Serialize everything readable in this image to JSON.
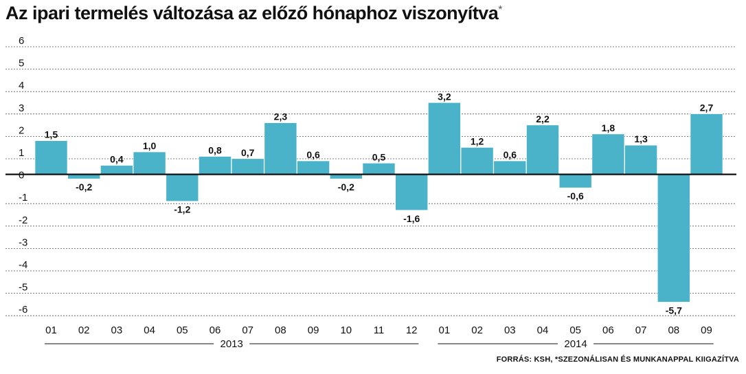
{
  "title": "Az ipari termelés változása az előző hónaphoz viszonyítva",
  "title_mark": "*",
  "source": "FORRÁS: KSH, *SZEZONÁLISAN ÉS MUNKANAPPAL KIIGAZÍTVA",
  "colors": {
    "bar": "#4bb3c9",
    "bar_edge": "#3a9fb4",
    "axis": "#111111",
    "grid": "#555555"
  },
  "chart_data": {
    "type": "bar",
    "categories": [
      "01",
      "02",
      "03",
      "04",
      "05",
      "06",
      "07",
      "08",
      "09",
      "10",
      "11",
      "12",
      "01",
      "02",
      "03",
      "04",
      "05",
      "06",
      "07",
      "08",
      "09"
    ],
    "values": [
      1.5,
      -0.2,
      0.4,
      1.0,
      -1.2,
      0.8,
      0.7,
      2.3,
      0.6,
      -0.2,
      0.5,
      -1.6,
      3.2,
      1.2,
      0.6,
      2.2,
      -0.6,
      1.8,
      1.3,
      -5.7,
      2.7
    ],
    "value_labels": [
      "1,5",
      "-0,2",
      "0,4",
      "1,0",
      "-1,2",
      "0,8",
      "0,7",
      "2,3",
      "0,6",
      "-0,2",
      "0,5",
      "-1,6",
      "3,2",
      "1,2",
      "0,6",
      "2,2",
      "-0,6",
      "1,8",
      "1,3",
      "-5,7",
      "2,7"
    ],
    "groups": [
      {
        "label": "2013",
        "count": 12
      },
      {
        "label": "2014",
        "count": 9
      }
    ],
    "yticks": [
      6,
      5,
      4,
      3,
      2,
      1,
      0,
      -1,
      -2,
      -3,
      -4,
      -5,
      -6
    ],
    "ytick_labels": [
      "6",
      "5",
      "4",
      "3",
      "2",
      "1",
      "0",
      "-1",
      "-2",
      "-3",
      "-4",
      "-5",
      "-6"
    ],
    "ylim": [
      -6,
      6
    ],
    "grid": "dashed horizontal"
  }
}
